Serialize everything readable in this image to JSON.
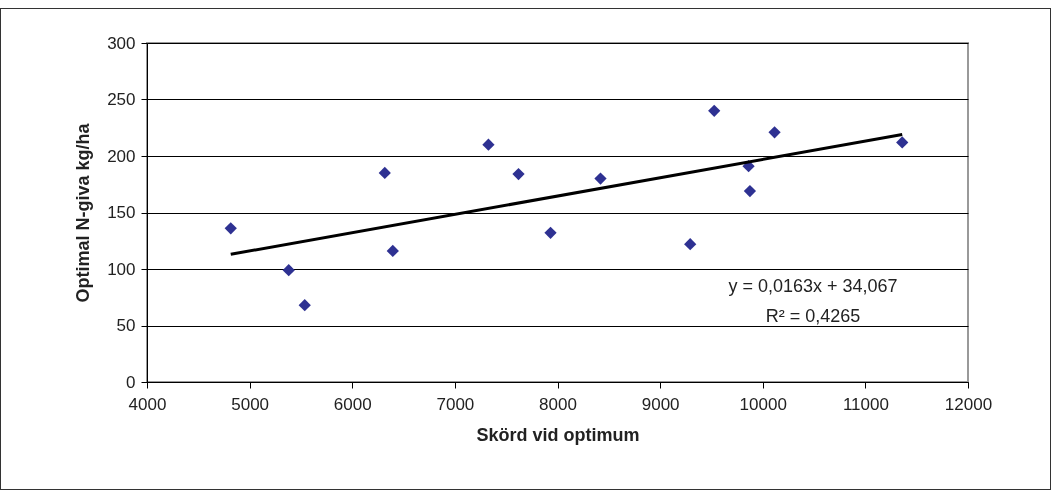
{
  "chart_data": {
    "type": "scatter",
    "xlabel": "Skörd vid optimum",
    "ylabel": "Optimal N-giva kg/ha",
    "xlim": [
      4000,
      12000
    ],
    "xticks": [
      4000,
      5000,
      6000,
      7000,
      8000,
      9000,
      10000,
      11000,
      12000
    ],
    "ylim": [
      0,
      300
    ],
    "yticks": [
      0,
      50,
      100,
      150,
      200,
      250,
      300
    ],
    "grid": "y",
    "marker": "diamond",
    "series": [
      {
        "color": "#2e3192",
        "x": [
          4816,
          5381,
          5537,
          6317,
          6395,
          7327,
          7620,
          7932,
          8419,
          9293,
          9527,
          9862,
          9875,
          10115,
          11359
        ],
        "values": [
          136,
          99,
          68,
          185,
          116,
          210,
          184,
          132,
          180,
          122,
          240,
          191,
          169,
          221,
          212
        ]
      },
      {
        "type": "line",
        "color": "#000000",
        "line_style": "solid",
        "marker": "none",
        "x": [
          4816,
          11359
        ],
        "values": [
          113,
          219
        ]
      }
    ],
    "annotations": [
      "y = 0,0163x + 34,067",
      "R² = 0,4265"
    ]
  }
}
